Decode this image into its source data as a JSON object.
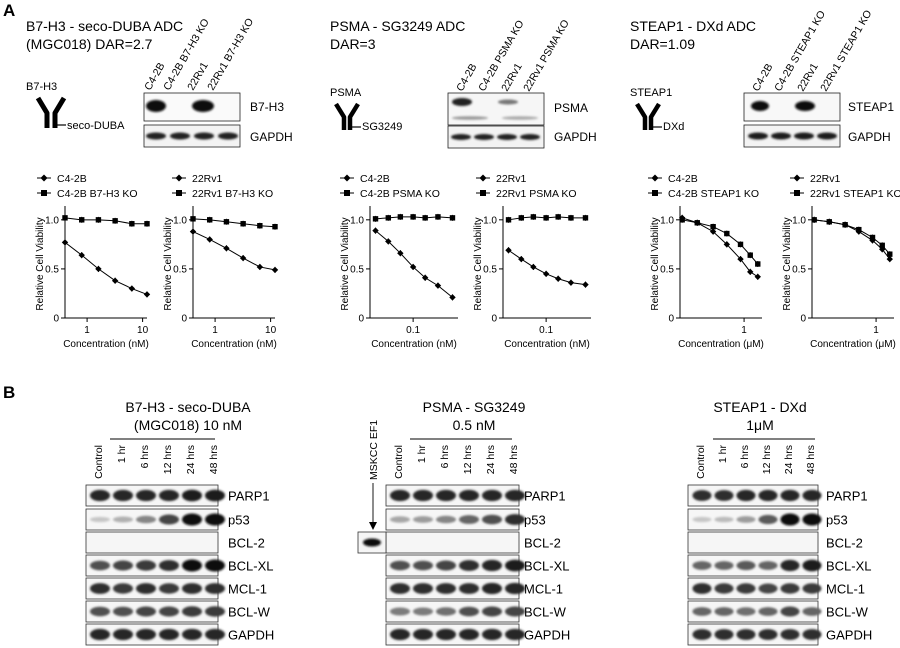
{
  "panel_labels": [
    "A",
    "B"
  ],
  "panel_a": {
    "groups": [
      {
        "title_lines": [
          "B7-H3 - seco-DUBA ADC",
          "(MGC018) DAR=2.7"
        ],
        "antibody_label": "B7-H3",
        "payload_label": "seco-DUBA",
        "blot_lanes": [
          "C4-2B",
          "C4-2B B7-H3 KO",
          "22Rv1",
          "22Rv1 B7-H3 KO"
        ],
        "blot_rows": [
          "B7-H3",
          "GAPDH"
        ],
        "charts": [
          {
            "legend": [
              "C4-2B",
              "C4-2B B7-H3 KO"
            ],
            "ylabel": "Relative Cell Viability",
            "xlabel": "Concentration (nM)",
            "x_ticks": [
              "1",
              "10"
            ],
            "y_ticks": [
              "0",
              "0.5",
              "1.0"
            ]
          },
          {
            "legend": [
              "22Rv1",
              "22Rv1 B7-H3 KO"
            ],
            "ylabel": "Relative Cell Viability",
            "xlabel": "Concentration (nM)",
            "x_ticks": [
              "1",
              "10"
            ],
            "y_ticks": [
              "0",
              "0.5",
              "1.0"
            ]
          }
        ]
      },
      {
        "title_lines": [
          "PSMA - SG3249 ADC",
          "DAR=3"
        ],
        "antibody_label": "PSMA",
        "payload_label": "SG3249",
        "blot_lanes": [
          "C4-2B",
          "C4-2B PSMA KO",
          "22Rv1",
          "22Rv1 PSMA KO"
        ],
        "blot_rows": [
          "PSMA",
          "GAPDH"
        ],
        "charts": [
          {
            "legend": [
              "C4-2B",
              "C4-2B PSMA KO"
            ],
            "ylabel": "Relative Cell Viability",
            "xlabel": "Concentration (nM)",
            "x_ticks": [
              "0.1"
            ],
            "y_ticks": [
              "0",
              "0.5",
              "1.0"
            ]
          },
          {
            "legend": [
              "22Rv1",
              "22Rv1 PSMA KO"
            ],
            "ylabel": "Relative Cell Viability",
            "xlabel": "Concentration (nM)",
            "x_ticks": [
              "0.1"
            ],
            "y_ticks": [
              "0",
              "0.5",
              "1.0"
            ]
          }
        ]
      },
      {
        "title_lines": [
          "STEAP1 - DXd ADC",
          "DAR=1.09"
        ],
        "antibody_label": "STEAP1",
        "payload_label": "DXd",
        "blot_lanes": [
          "C4-2B",
          "C4-2B STEAP1 KO",
          "22Rv1",
          "22Rv1 STEAP1 KO"
        ],
        "blot_rows": [
          "STEAP1",
          "GAPDH"
        ],
        "charts": [
          {
            "legend": [
              "C4-2B",
              "C4-2B STEAP1 KO"
            ],
            "ylabel": "Relative Cell Viability",
            "xlabel": "Concentration (μM)",
            "x_ticks": [
              "1"
            ],
            "y_ticks": [
              "0",
              "0.5",
              "1.0"
            ]
          },
          {
            "legend": [
              "22Rv1",
              "22Rv1 STEAP1 KO"
            ],
            "ylabel": "Relative Cell Viability",
            "xlabel": "Concentration (μM)",
            "x_ticks": [
              "1"
            ],
            "y_ticks": [
              "0",
              "0.5",
              "1.0"
            ]
          }
        ]
      }
    ]
  },
  "panel_b": {
    "groups": [
      {
        "title_lines": [
          "B7-H3 - seco-DUBA",
          "(MGC018) 10 nM"
        ],
        "lanes": [
          "Control",
          "1 hr",
          "6 hrs",
          "12 hrs",
          "24 hrs",
          "48 hrs"
        ],
        "rows": [
          "PARP1",
          "p53",
          "BCL-2",
          "BCL-XL",
          "MCL-1",
          "BCL-W",
          "GAPDH"
        ]
      },
      {
        "title_lines": [
          "PSMA - SG3249",
          "0.5 nM"
        ],
        "extra_lane": "MSKCC EF1",
        "lanes": [
          "Control",
          "1 hr",
          "6 hrs",
          "12 hrs",
          "24 hrs",
          "48 hrs"
        ],
        "rows": [
          "PARP1",
          "p53",
          "BCL-2",
          "BCL-XL",
          "MCL-1",
          "BCL-W",
          "GAPDH"
        ]
      },
      {
        "title_lines": [
          "STEAP1 - DXd",
          "1μM"
        ],
        "lanes": [
          "Control",
          "1 hr",
          "6 hrs",
          "12 hrs",
          "24 hrs",
          "48 hrs"
        ],
        "rows": [
          "PARP1",
          "p53",
          "BCL-2",
          "BCL-XL",
          "MCL-1",
          "BCL-W",
          "GAPDH"
        ]
      }
    ]
  },
  "chart_data": [
    {
      "type": "line",
      "x_scale": "log",
      "xlabel": "Concentration (nM)",
      "ylabel": "Relative Cell Viability",
      "xlim": [
        0.4,
        12
      ],
      "ylim": [
        0,
        1.1
      ],
      "series": [
        {
          "name": "C4-2B",
          "marker": "diamond",
          "x": [
            0.4,
            0.8,
            1.6,
            3.2,
            6.4,
            12
          ],
          "y": [
            0.77,
            0.64,
            0.5,
            0.38,
            0.3,
            0.24
          ]
        },
        {
          "name": "C4-2B B7-H3 KO",
          "marker": "square",
          "x": [
            0.4,
            0.8,
            1.6,
            3.2,
            6.4,
            12
          ],
          "y": [
            1.02,
            1.0,
            1.0,
            0.99,
            0.96,
            0.96
          ]
        }
      ]
    },
    {
      "type": "line",
      "x_scale": "log",
      "xlabel": "Concentration (nM)",
      "ylabel": "Relative Cell Viability",
      "xlim": [
        0.4,
        12
      ],
      "ylim": [
        0,
        1.1
      ],
      "series": [
        {
          "name": "22Rv1",
          "marker": "diamond",
          "x": [
            0.4,
            0.8,
            1.6,
            3.2,
            6.4,
            12
          ],
          "y": [
            0.88,
            0.8,
            0.71,
            0.61,
            0.52,
            0.49
          ]
        },
        {
          "name": "22Rv1 B7-H3 KO",
          "marker": "square",
          "x": [
            0.4,
            0.8,
            1.6,
            3.2,
            6.4,
            12
          ],
          "y": [
            1.01,
            1.0,
            0.98,
            0.96,
            0.94,
            0.93
          ]
        }
      ]
    },
    {
      "type": "line",
      "x_scale": "log",
      "xlabel": "Concentration (nM)",
      "ylabel": "Relative Cell Viability",
      "xlim": [
        0.03,
        0.35
      ],
      "ylim": [
        0,
        1.1
      ],
      "series": [
        {
          "name": "C4-2B",
          "marker": "diamond",
          "x": [
            0.035,
            0.05,
            0.07,
            0.1,
            0.14,
            0.2,
            0.3
          ],
          "y": [
            0.89,
            0.78,
            0.66,
            0.52,
            0.41,
            0.33,
            0.21
          ]
        },
        {
          "name": "C4-2B PSMA KO",
          "marker": "square",
          "x": [
            0.035,
            0.05,
            0.07,
            0.1,
            0.14,
            0.2,
            0.3
          ],
          "y": [
            1.01,
            1.02,
            1.03,
            1.03,
            1.02,
            1.03,
            1.02
          ]
        }
      ]
    },
    {
      "type": "line",
      "x_scale": "log",
      "xlabel": "Concentration (nM)",
      "ylabel": "Relative Cell Viability",
      "xlim": [
        0.03,
        0.35
      ],
      "ylim": [
        0,
        1.1
      ],
      "series": [
        {
          "name": "22Rv1",
          "marker": "diamond",
          "x": [
            0.035,
            0.05,
            0.07,
            0.1,
            0.14,
            0.2,
            0.3
          ],
          "y": [
            0.69,
            0.6,
            0.52,
            0.45,
            0.4,
            0.36,
            0.34
          ]
        },
        {
          "name": "22Rv1 PSMA KO",
          "marker": "square",
          "x": [
            0.035,
            0.05,
            0.07,
            0.1,
            0.14,
            0.2,
            0.3
          ],
          "y": [
            1.0,
            1.02,
            1.03,
            1.02,
            1.03,
            1.02,
            1.02
          ]
        }
      ]
    },
    {
      "type": "line",
      "x_scale": "log",
      "xlabel": "Concentration (μM)",
      "ylabel": "Relative Cell Viability",
      "xlim": [
        0.15,
        1.7
      ],
      "ylim": [
        0,
        1.1
      ],
      "series": [
        {
          "name": "C4-2B",
          "marker": "diamond",
          "x": [
            0.16,
            0.25,
            0.4,
            0.6,
            0.9,
            1.2,
            1.5
          ],
          "y": [
            1.02,
            0.97,
            0.88,
            0.75,
            0.6,
            0.47,
            0.42
          ]
        },
        {
          "name": "C4-2B STEAP1 KO",
          "marker": "square",
          "x": [
            0.16,
            0.25,
            0.4,
            0.6,
            0.9,
            1.2,
            1.5
          ],
          "y": [
            1.0,
            0.97,
            0.93,
            0.86,
            0.75,
            0.64,
            0.55
          ]
        }
      ]
    },
    {
      "type": "line",
      "x_scale": "log",
      "xlabel": "Concentration (μM)",
      "ylabel": "Relative Cell Viability",
      "xlim": [
        0.15,
        1.7
      ],
      "ylim": [
        0,
        1.1
      ],
      "series": [
        {
          "name": "22Rv1",
          "marker": "diamond",
          "x": [
            0.16,
            0.25,
            0.4,
            0.6,
            0.9,
            1.2,
            1.5
          ],
          "y": [
            1.0,
            0.98,
            0.95,
            0.88,
            0.79,
            0.7,
            0.6
          ]
        },
        {
          "name": "22Rv1 STEAP1 KO",
          "marker": "square",
          "x": [
            0.16,
            0.25,
            0.4,
            0.6,
            0.9,
            1.2,
            1.5
          ],
          "y": [
            1.0,
            0.98,
            0.95,
            0.9,
            0.82,
            0.74,
            0.65
          ]
        }
      ]
    }
  ]
}
